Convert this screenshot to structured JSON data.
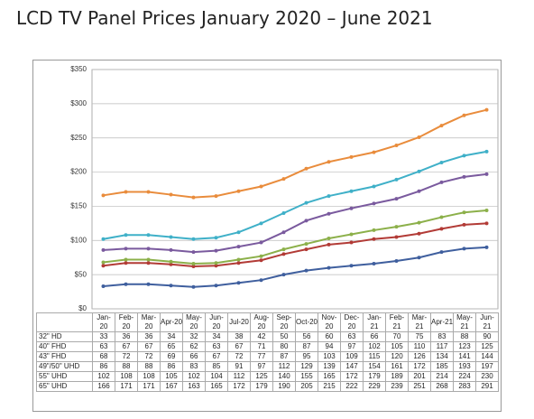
{
  "chart_data": {
    "type": "line",
    "title": "LCD TV Panel Prices January 2020 – June 2021",
    "categories": [
      "Jan-20",
      "Feb-20",
      "Mar-20",
      "Apr-20",
      "May-20",
      "Jun-20",
      "Jul-20",
      "Aug-20",
      "Sep-20",
      "Oct-20",
      "Nov-20",
      "Dec-20",
      "Jan-21",
      "Feb-21",
      "Mar-21",
      "Apr-21",
      "May-21",
      "Jun-21"
    ],
    "series": [
      {
        "name": "32\" HD",
        "color": "#3f5f9e",
        "values": [
          33,
          36,
          36,
          34,
          32,
          34,
          38,
          42,
          50,
          56,
          60,
          63,
          66,
          70,
          75,
          83,
          88,
          90
        ]
      },
      {
        "name": "40\" FHD",
        "color": "#b23b36",
        "values": [
          63,
          67,
          67,
          65,
          62,
          63,
          67,
          71,
          80,
          87,
          94,
          97,
          102,
          105,
          110,
          117,
          123,
          125
        ]
      },
      {
        "name": "43\" FHD",
        "color": "#8cb04a",
        "values": [
          68,
          72,
          72,
          69,
          66,
          67,
          72,
          77,
          87,
          95,
          103,
          109,
          115,
          120,
          126,
          134,
          141,
          144
        ]
      },
      {
        "name": "49\"/50\" UHD",
        "color": "#7a5a9e",
        "values": [
          86,
          88,
          88,
          86,
          83,
          85,
          91,
          97,
          112,
          129,
          139,
          147,
          154,
          161,
          172,
          185,
          193,
          197
        ]
      },
      {
        "name": "55\" UHD",
        "color": "#3fb0c8",
        "values": [
          102,
          108,
          108,
          105,
          102,
          104,
          112,
          125,
          140,
          155,
          165,
          172,
          179,
          189,
          201,
          214,
          224,
          230
        ]
      },
      {
        "name": "65\" UHD",
        "color": "#e98c3c",
        "values": [
          166,
          171,
          171,
          167,
          163,
          165,
          172,
          179,
          190,
          205,
          215,
          222,
          229,
          239,
          251,
          268,
          283,
          291
        ]
      }
    ],
    "ylim": [
      0,
      350
    ],
    "yticks": [
      {
        "value": 0,
        "label": "$0"
      },
      {
        "value": 50,
        "label": "$50"
      },
      {
        "value": 100,
        "label": "$100"
      },
      {
        "value": 150,
        "label": "$150"
      },
      {
        "value": 200,
        "label": "$200"
      },
      {
        "value": 250,
        "label": "$250"
      },
      {
        "value": 300,
        "label": "$300"
      },
      {
        "value": 350,
        "label": "$350"
      }
    ],
    "grid": true
  }
}
